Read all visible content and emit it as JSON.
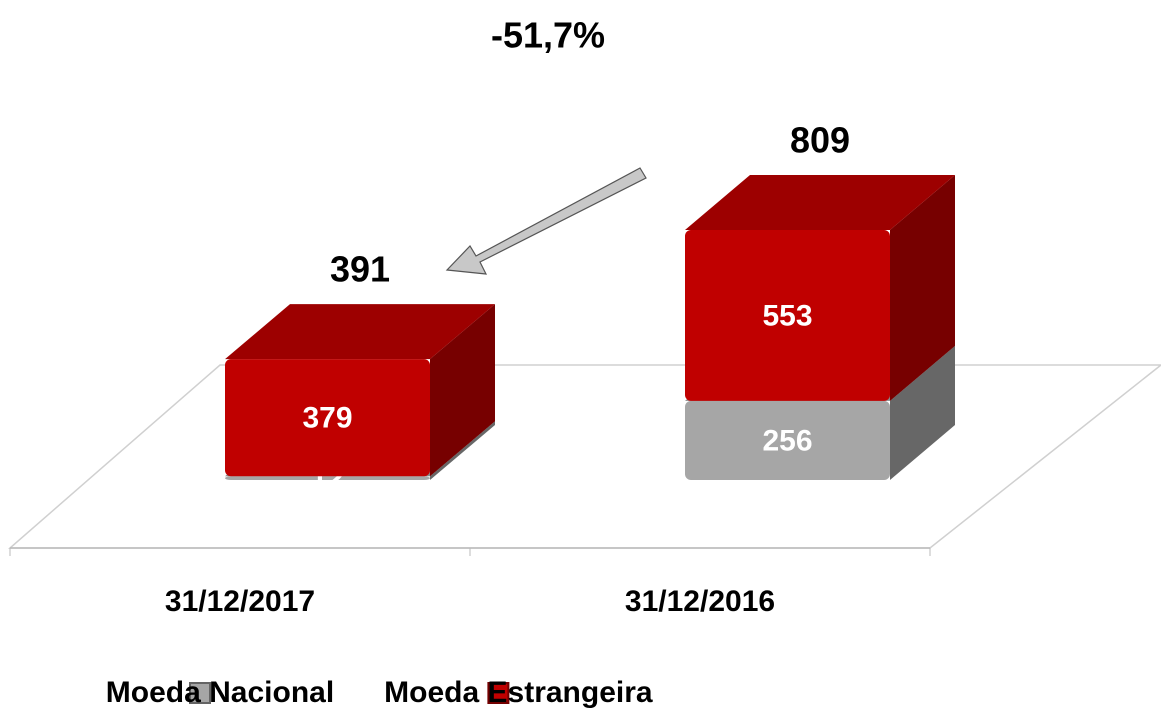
{
  "chart_data": {
    "type": "bar3d_stacked",
    "annotation": "-51,7%",
    "categories": [
      "31/12/2017",
      "31/12/2016"
    ],
    "series": [
      {
        "name": "Moeda Nacional",
        "color": "#a6a6a6",
        "values": [
          12,
          256
        ]
      },
      {
        "name": "Moeda Estrangeira",
        "color": "#c00000",
        "values": [
          379,
          553
        ]
      }
    ],
    "totals": [
      391,
      809
    ]
  }
}
